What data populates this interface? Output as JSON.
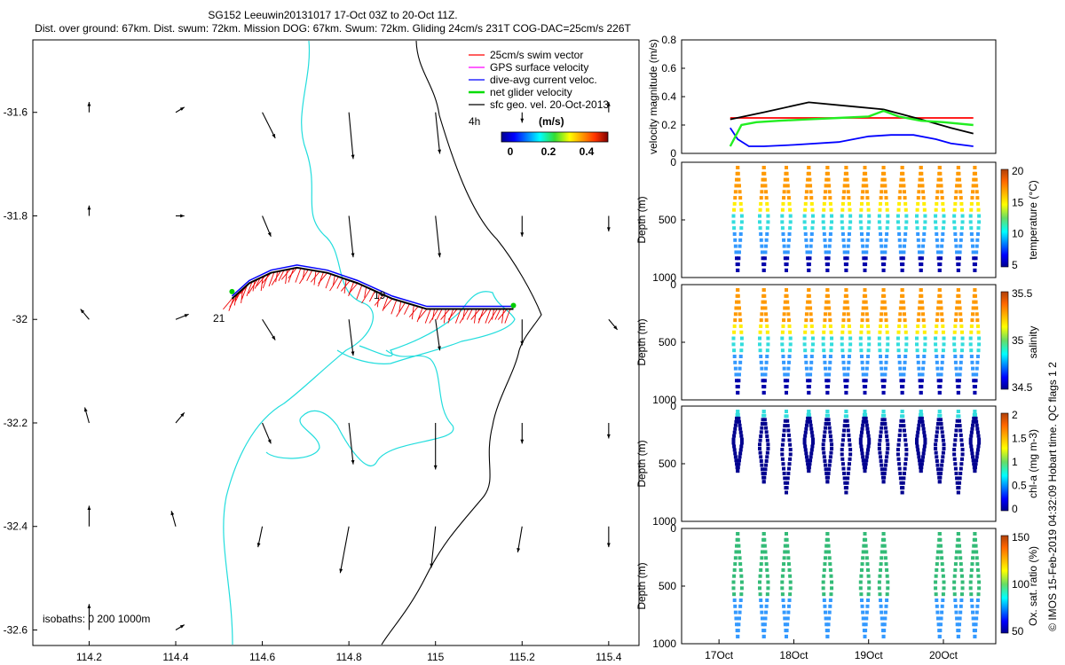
{
  "header": {
    "line1": "SG152 Leeuwin20131017 17-Oct 03Z to 20-Oct 11Z.",
    "line2": "Dist. over ground: 67km. Dist. swum: 72km. Mission DOG: 67km. Swum: 72km. Gliding 24cm/s 231T COG-DAC=25cm/s 226T"
  },
  "side_note": "© IMOS 15-Feb-2019 04:32:09 Hobart time. QC flags 1  2",
  "map": {
    "x_ticks": [
      "114.2",
      "114.4",
      "114.6",
      "114.8",
      "115",
      "115.2",
      "115.4"
    ],
    "y_ticks": [
      "-31.6",
      "-31.8",
      "-32",
      "-32.2",
      "-32.4",
      "-32.6"
    ],
    "x_range": [
      114.07,
      115.47
    ],
    "y_range": [
      -32.63,
      -31.46
    ],
    "legend": [
      {
        "label": "25cm/s swim vector",
        "color": "#ff0000"
      },
      {
        "label": "GPS surface velocity",
        "color": "#ff00ff"
      },
      {
        "label": "dive-avg current veloc.",
        "color": "#0000ff"
      },
      {
        "label": "net glider velocity",
        "color": "#00dd00"
      },
      {
        "label": "sfc geo. vel. 20-Oct-2013",
        "color": "#000000"
      }
    ],
    "legend_4h": "4h",
    "colorbar_label": "(m/s)",
    "colorbar_ticks": [
      "0",
      "0.2",
      "0.4"
    ],
    "isobath_label": "isobaths: 0   200  1000m",
    "track_labels": [
      "21",
      "19"
    ]
  },
  "panels": {
    "time_ticks": [
      "17Oct",
      "18Oct",
      "19Oct",
      "20Oct"
    ],
    "velocity": {
      "ylabel": "velocity magnitude (m/s)",
      "y_ticks": [
        "0",
        "0.2",
        "0.4",
        "0.6",
        "0.8"
      ]
    },
    "profiles": [
      {
        "id": "temperature",
        "cb_label": "temperature (°C)",
        "cb_ticks": [
          "5",
          "10",
          "15",
          "20"
        ]
      },
      {
        "id": "salinity",
        "cb_label": "salinity",
        "cb_ticks": [
          "34.5",
          "35",
          "35.5"
        ]
      },
      {
        "id": "chla",
        "cb_label": "chl-a (mg m-3)",
        "cb_ticks": [
          "0",
          "0.5",
          "1",
          "1.5",
          "2"
        ]
      },
      {
        "id": "oxygen",
        "cb_label": "Ox. sat. ratio (%)",
        "cb_ticks": [
          "50",
          "100",
          "150"
        ]
      }
    ],
    "depth_label": "Depth (m)",
    "depth_ticks": [
      "0",
      "500",
      "1000"
    ]
  },
  "chart_data": [
    {
      "type": "scatter",
      "title": "SG152 Leeuwin20131017 17-Oct 03Z to 20-Oct 11Z.",
      "xlabel": "",
      "ylabel": "",
      "xlim": [
        114.07,
        115.47
      ],
      "ylim": [
        -32.63,
        -31.46
      ],
      "series": [
        {
          "name": "glider track",
          "x": [
            114.53,
            114.57,
            114.62,
            114.68,
            114.75,
            114.82,
            114.9,
            114.98,
            115.05,
            115.12,
            115.18
          ],
          "y": [
            -31.96,
            -31.93,
            -31.91,
            -31.9,
            -31.91,
            -31.93,
            -31.96,
            -31.98,
            -31.98,
            -31.98,
            -31.98
          ]
        }
      ]
    },
    {
      "type": "line",
      "xlabel": "",
      "ylabel": "velocity magnitude (m/s)",
      "ylim": [
        0,
        0.8
      ],
      "series": [
        {
          "name": "25cm/s swim vector",
          "x": [
            17.15,
            17.5,
            18.0,
            18.5,
            19.0,
            19.5,
            20.0,
            20.4
          ],
          "y": [
            0.25,
            0.25,
            0.25,
            0.25,
            0.25,
            0.25,
            0.25,
            0.25
          ]
        },
        {
          "name": "sfc geo. vel.",
          "x": [
            17.15,
            17.6,
            18.2,
            18.8,
            19.2,
            19.7,
            20.1,
            20.4
          ],
          "y": [
            0.24,
            0.29,
            0.36,
            0.33,
            0.31,
            0.24,
            0.18,
            0.14
          ]
        },
        {
          "name": "dive-avg current veloc.",
          "x": [
            17.15,
            17.25,
            17.4,
            17.6,
            18.0,
            18.6,
            19.0,
            19.3,
            19.6,
            19.9,
            20.1,
            20.4
          ],
          "y": [
            0.18,
            0.1,
            0.05,
            0.05,
            0.06,
            0.08,
            0.12,
            0.13,
            0.13,
            0.1,
            0.07,
            0.05
          ]
        },
        {
          "name": "net glider velocity",
          "x": [
            17.15,
            17.3,
            17.5,
            17.8,
            18.2,
            18.6,
            19.0,
            19.2,
            19.4,
            19.7,
            20.0,
            20.4
          ],
          "y": [
            0.05,
            0.2,
            0.22,
            0.23,
            0.24,
            0.25,
            0.26,
            0.3,
            0.26,
            0.23,
            0.22,
            0.2
          ]
        }
      ]
    }
  ]
}
